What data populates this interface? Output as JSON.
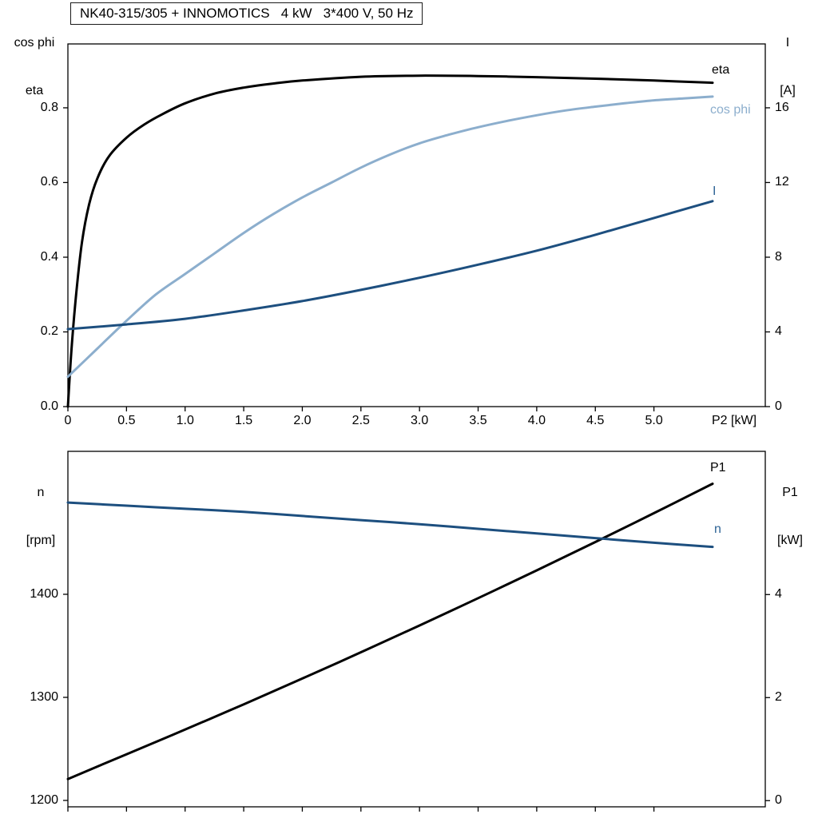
{
  "title": "NK40-315/305 + INNOMOTICS   4 kW   3*400 V, 50 Hz",
  "colors": {
    "black": "#000000",
    "frame": "#000000",
    "light_blue": "#8caecd",
    "dark_blue": "#1d4f7f",
    "label_blue": "#2e6496"
  },
  "labels": {
    "top_left_line1": "cos phi",
    "top_left_line2": "eta",
    "top_right_line1": "I",
    "top_right_line2": "[A]",
    "x_axis": "P2 [kW]",
    "bottom_left_line1": "n",
    "bottom_left_line2": "[rpm]",
    "bottom_right_line1": "P1",
    "bottom_right_line2": "[kW]",
    "curve_eta": "eta",
    "curve_cosphi": "cos phi",
    "curve_I": "I",
    "curve_P1": "P1",
    "curve_n": "n"
  },
  "chart_data": [
    {
      "type": "line",
      "title": "NK40-315/305 + INNOMOTICS   4 kW   3*400 V, 50 Hz",
      "xlabel": "P2 [kW]",
      "ylabel_left": "cos phi / eta",
      "ylabel_right": "I [A]",
      "grid": false,
      "legend_position": "right-inline",
      "xlim": [
        0,
        5.95
      ],
      "ylim_left": [
        0,
        0.971
      ],
      "ylim_right": [
        0,
        19.42
      ],
      "x_ticks": [
        "0",
        "0.5",
        "1.0",
        "1.5",
        "2.0",
        "2.5",
        "3.0",
        "3.5",
        "4.0",
        "4.5",
        "5.0"
      ],
      "x_tick_labels_visible": true,
      "y_ticks_left": [
        "0.0",
        "0.2",
        "0.4",
        "0.6",
        "0.8"
      ],
      "y_ticks_right": [
        "0",
        "4",
        "8",
        "12",
        "16"
      ],
      "series": [
        {
          "name": "eta",
          "axis": "left",
          "color": "#000000",
          "width": 3,
          "x": [
            0,
            0.03,
            0.07,
            0.12,
            0.18,
            0.25,
            0.35,
            0.5,
            0.65,
            0.8,
            1.0,
            1.25,
            1.5,
            1.75,
            2.0,
            2.5,
            3.0,
            3.5,
            4.0,
            4.5,
            5.0,
            5.5
          ],
          "y": [
            0,
            0.15,
            0.3,
            0.44,
            0.54,
            0.61,
            0.67,
            0.72,
            0.755,
            0.782,
            0.812,
            0.838,
            0.854,
            0.865,
            0.873,
            0.883,
            0.886,
            0.885,
            0.882,
            0.878,
            0.873,
            0.867
          ]
        },
        {
          "name": "cos phi",
          "axis": "left",
          "color": "#8caecd",
          "width": 3,
          "x": [
            0,
            0.25,
            0.5,
            0.75,
            1.0,
            1.25,
            1.5,
            1.75,
            2.0,
            2.25,
            2.5,
            2.75,
            3.0,
            3.25,
            3.5,
            3.75,
            4.0,
            4.25,
            4.5,
            4.75,
            5.0,
            5.25,
            5.5
          ],
          "y": [
            0.08,
            0.155,
            0.23,
            0.3,
            0.355,
            0.41,
            0.465,
            0.515,
            0.56,
            0.6,
            0.64,
            0.675,
            0.705,
            0.728,
            0.748,
            0.765,
            0.78,
            0.793,
            0.803,
            0.812,
            0.82,
            0.825,
            0.83
          ]
        },
        {
          "name": "I",
          "axis": "right",
          "color": "#1d4f7f",
          "width": 3,
          "x": [
            0,
            0.5,
            1.0,
            1.5,
            2.0,
            2.5,
            3.0,
            3.5,
            4.0,
            4.5,
            5.0,
            5.5
          ],
          "y": [
            4.15,
            4.4,
            4.7,
            5.15,
            5.65,
            6.25,
            6.9,
            7.6,
            8.35,
            9.2,
            10.1,
            11.0
          ]
        }
      ]
    },
    {
      "type": "line",
      "xlabel": "",
      "ylabel_left": "n [rpm]",
      "ylabel_right": "P1 [kW]",
      "grid": false,
      "legend_position": "right-inline",
      "xlim": [
        0,
        5.95
      ],
      "ylim_left": [
        1193.8,
        1538.7
      ],
      "ylim_right": [
        -0.12,
        6.78
      ],
      "x_ticks": [
        "0",
        "0.5",
        "1.0",
        "1.5",
        "2.0",
        "2.5",
        "3.0",
        "3.5",
        "4.0",
        "4.5",
        "5.0"
      ],
      "x_tick_labels_visible": false,
      "y_ticks_left": [
        "1200",
        "1300",
        "1400"
      ],
      "y_ticks_right": [
        "0",
        "2",
        "4"
      ],
      "series": [
        {
          "name": "P1",
          "axis": "right",
          "color": "#000000",
          "width": 3,
          "x": [
            0,
            0.5,
            1.0,
            1.5,
            2.0,
            2.5,
            3.0,
            3.5,
            4.0,
            4.5,
            5.0,
            5.5
          ],
          "y": [
            0.42,
            0.9,
            1.38,
            1.87,
            2.37,
            2.88,
            3.4,
            3.93,
            4.47,
            5.02,
            5.58,
            6.15
          ]
        },
        {
          "name": "n",
          "axis": "left",
          "color": "#1d4f7f",
          "width": 3,
          "x": [
            0,
            0.5,
            1.0,
            1.5,
            2.0,
            2.5,
            3.0,
            3.5,
            4.0,
            4.5,
            5.0,
            5.5
          ],
          "y": [
            1489,
            1486,
            1483,
            1480,
            1476,
            1472,
            1468,
            1463.5,
            1459,
            1454.5,
            1450,
            1446
          ]
        }
      ]
    }
  ]
}
